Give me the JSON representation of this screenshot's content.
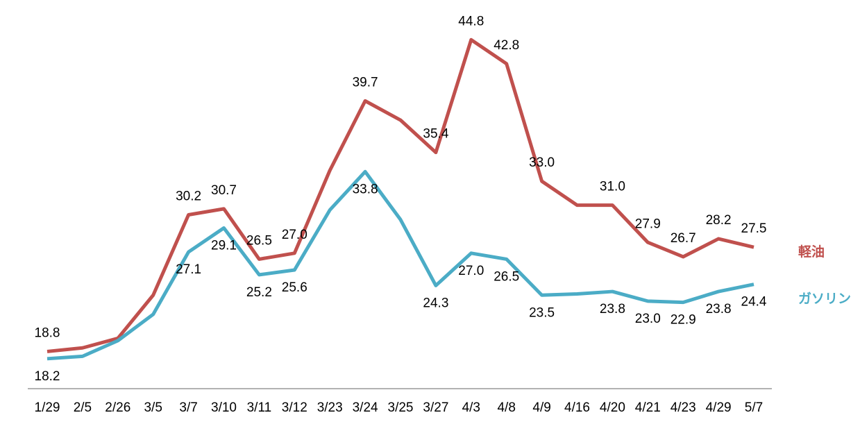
{
  "chart_data": {
    "type": "line",
    "categories": [
      "1/29",
      "2/5",
      "2/26",
      "3/5",
      "3/7",
      "3/10",
      "3/11",
      "3/12",
      "3/23",
      "3/24",
      "3/25",
      "3/27",
      "4/3",
      "4/8",
      "4/9",
      "4/16",
      "4/20",
      "4/21",
      "4/23",
      "4/29",
      "5/7"
    ],
    "series": [
      {
        "name": "軽油",
        "color": "#c0504d",
        "values": [
          18.8,
          19.1,
          19.9,
          23.5,
          30.2,
          30.7,
          26.5,
          27.0,
          33.9,
          39.7,
          38.1,
          35.4,
          44.8,
          42.8,
          33.0,
          31.0,
          31.0,
          27.9,
          26.7,
          28.2,
          27.5
        ],
        "value_labels": [
          "18.8",
          null,
          null,
          null,
          "30.2",
          "30.7",
          "26.5",
          "27.0",
          null,
          "39.7",
          null,
          "35.4",
          "44.8",
          "42.8",
          "33.0",
          null,
          "31.0",
          "27.9",
          "26.7",
          "28.2",
          "27.5"
        ]
      },
      {
        "name": "ガソリン",
        "color": "#4bacc6",
        "values": [
          18.2,
          18.4,
          19.7,
          21.9,
          27.1,
          29.1,
          25.2,
          25.6,
          30.6,
          33.8,
          29.8,
          24.3,
          27.0,
          26.5,
          23.5,
          23.6,
          23.8,
          23.0,
          22.9,
          23.8,
          24.4
        ],
        "value_labels": [
          "18.2",
          null,
          null,
          null,
          "27.1",
          "29.1",
          "25.2",
          "25.6",
          null,
          "33.8",
          null,
          "24.3",
          "27.0",
          "26.5",
          "23.5",
          null,
          "23.8",
          "23.0",
          "22.9",
          "23.8",
          "24.4"
        ]
      }
    ],
    "ylim": [
      15.7,
      45.8
    ]
  }
}
